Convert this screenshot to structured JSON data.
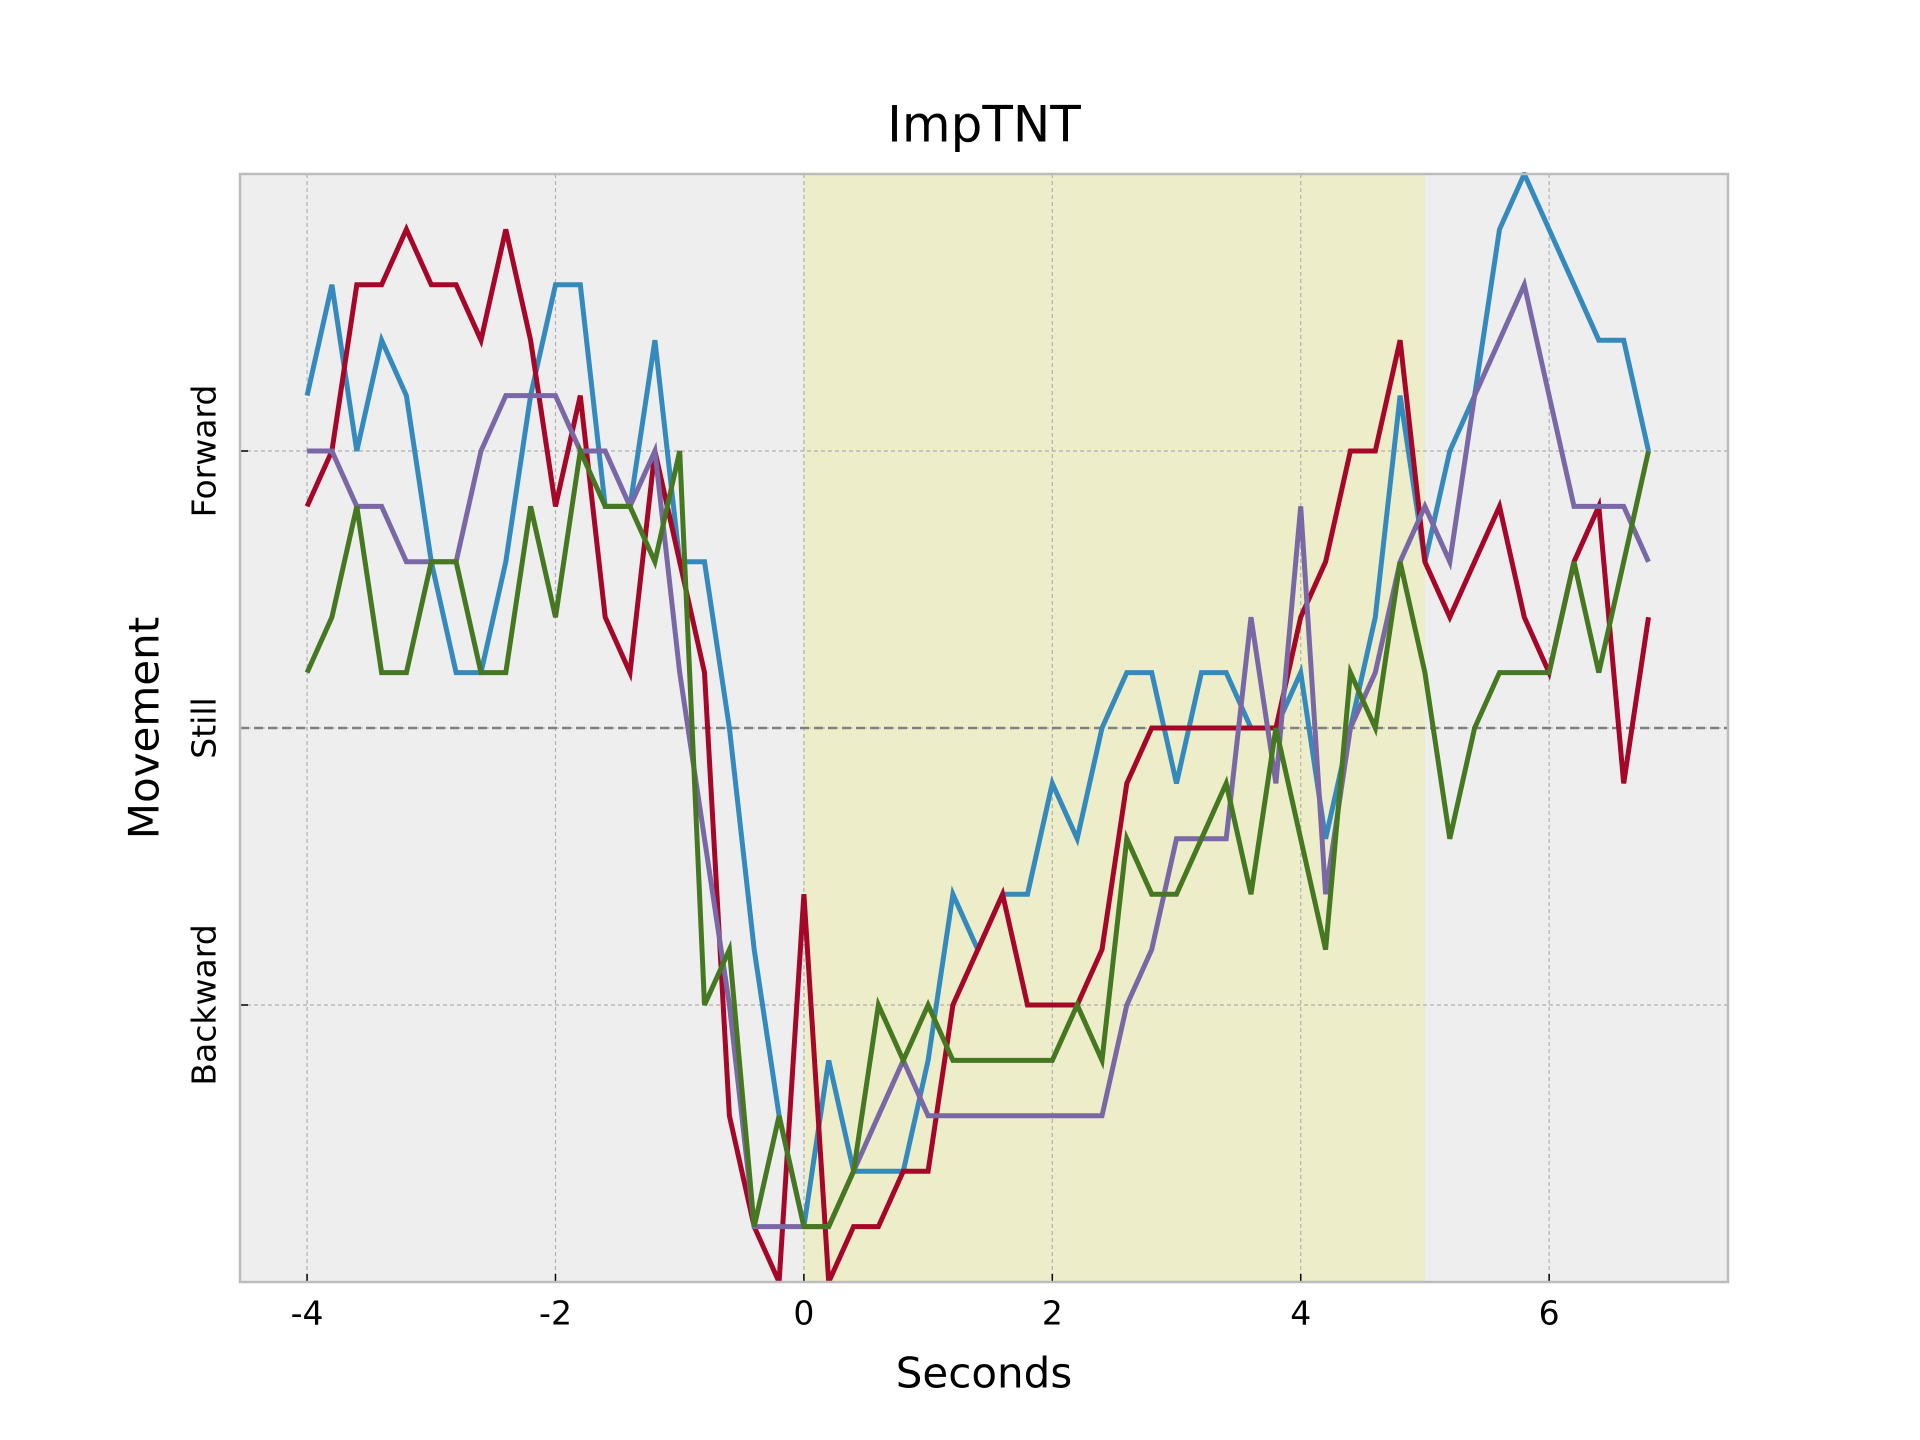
{
  "chart_data": {
    "type": "line",
    "title": "ImpTNT",
    "xlabel": "Seconds",
    "ylabel": "Movement",
    "xlim": [
      -4.54,
      7.44
    ],
    "ylim": [
      -2,
      2
    ],
    "xticks": [
      -4,
      -2,
      0,
      2,
      4,
      6
    ],
    "yticks": [
      {
        "value": -1,
        "label": "Backward"
      },
      {
        "value": 0,
        "label": "Still"
      },
      {
        "value": 1,
        "label": "Forward"
      }
    ],
    "grid": true,
    "hline": 0,
    "span": {
      "xmin": 0,
      "xmax": 5,
      "color": "#eeedc9"
    },
    "x": [
      -4.0,
      -3.8,
      -3.6,
      -3.4,
      -3.2,
      -3.0,
      -2.8,
      -2.6,
      -2.4,
      -2.2,
      -2.0,
      -1.8,
      -1.6,
      -1.4,
      -1.2,
      -1.0,
      -0.8,
      -0.6,
      -0.4,
      -0.2,
      0.0,
      0.2,
      0.4,
      0.6,
      0.8,
      1.0,
      1.2,
      1.4,
      1.6,
      1.8,
      2.0,
      2.2,
      2.4,
      2.6,
      2.8,
      3.0,
      3.2,
      3.4,
      3.6,
      3.8,
      4.0,
      4.2,
      4.4,
      4.6,
      4.8,
      5.0,
      5.2,
      5.4,
      5.6,
      5.8,
      6.0,
      6.2,
      6.4,
      6.6,
      6.8
    ],
    "series": [
      {
        "color": "#348abd",
        "values": [
          1.2,
          1.6,
          1.0,
          1.4,
          1.2,
          0.6,
          0.2,
          0.2,
          0.6,
          1.2,
          1.6,
          1.6,
          0.8,
          0.8,
          1.4,
          0.6,
          0.6,
          0,
          -0.8,
          -1.4,
          -1.8,
          -1.2,
          -1.6,
          -1.6,
          -1.6,
          -1.2,
          -0.6,
          -0.8,
          -0.6,
          -0.6,
          -0.2,
          -0.4,
          0,
          0.2,
          0.2,
          -0.2,
          0.2,
          0.2,
          0,
          0,
          0.2,
          -0.4,
          0,
          0.4,
          1.2,
          0.6,
          1.0,
          1.2,
          1.8,
          2.0,
          1.8,
          1.6,
          1.4,
          1.4,
          1.0
        ]
      },
      {
        "color": "#a60628",
        "values": [
          0.8,
          1.0,
          1.6,
          1.6,
          1.8,
          1.6,
          1.6,
          1.4,
          1.8,
          1.4,
          0.8,
          1.2,
          0.4,
          0.2,
          1.0,
          0.6,
          0.2,
          -1.4,
          -1.8,
          -2.0,
          -0.6,
          -2.0,
          -1.8,
          -1.8,
          -1.6,
          -1.6,
          -1.0,
          -0.8,
          -0.6,
          -1.0,
          -1.0,
          -1.0,
          -0.8,
          -0.2,
          0,
          0,
          0,
          0,
          0,
          0,
          0.4,
          0.6,
          1.0,
          1.0,
          1.4,
          0.6,
          0.4,
          0.6,
          0.8,
          0.4,
          0.2,
          0.6,
          0.8,
          -0.2,
          0.4
        ]
      },
      {
        "color": "#7a68a6",
        "values": [
          1.0,
          1.0,
          0.8,
          0.8,
          0.6,
          0.6,
          0.6,
          1.0,
          1.2,
          1.2,
          1.2,
          1.0,
          1.0,
          0.8,
          1.0,
          0.2,
          -0.4,
          -1.0,
          -1.8,
          -1.8,
          -1.8,
          -1.8,
          -1.6,
          -1.4,
          -1.2,
          -1.4,
          -1.4,
          -1.4,
          -1.4,
          -1.4,
          -1.4,
          -1.4,
          -1.4,
          -1.0,
          -0.8,
          -0.4,
          -0.4,
          -0.4,
          0.4,
          -0.2,
          0.8,
          -0.6,
          0,
          0.2,
          0.6,
          0.8,
          0.6,
          1.2,
          1.4,
          1.6,
          1.2,
          0.8,
          0.8,
          0.8,
          0.6
        ]
      },
      {
        "color": "#467821",
        "values": [
          0.2,
          0.4,
          0.8,
          0.2,
          0.2,
          0.6,
          0.6,
          0.2,
          0.2,
          0.8,
          0.4,
          1.0,
          0.8,
          0.8,
          0.6,
          1.0,
          -1.0,
          -0.8,
          -1.8,
          -1.4,
          -1.8,
          -1.8,
          -1.6,
          -1.0,
          -1.2,
          -1.0,
          -1.2,
          -1.2,
          -1.2,
          -1.2,
          -1.2,
          -1.0,
          -1.2,
          -0.4,
          -0.6,
          -0.6,
          -0.4,
          -0.2,
          -0.6,
          0,
          -0.4,
          -0.8,
          0.2,
          0,
          0.6,
          0.2,
          -0.4,
          0,
          0.2,
          0.2,
          0.2,
          0.6,
          0.2,
          0.6,
          1.0
        ]
      }
    ]
  }
}
